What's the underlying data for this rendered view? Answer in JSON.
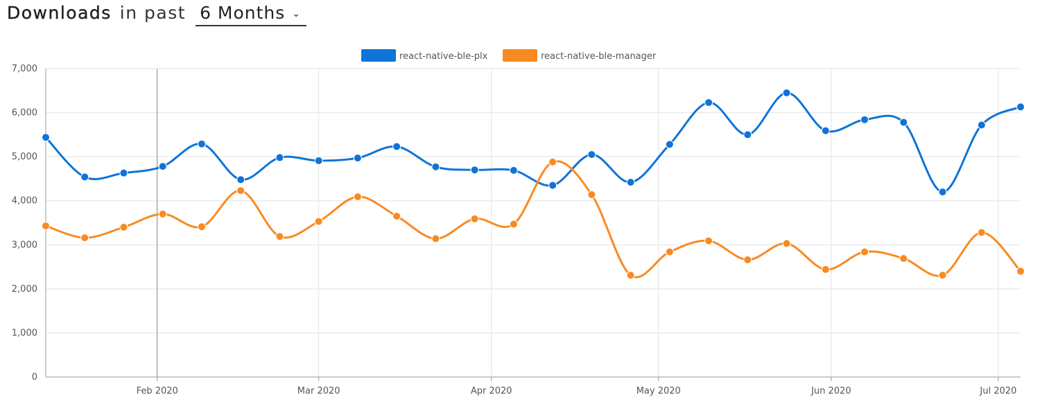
{
  "header": {
    "title": "Downloads",
    "connector": "in past",
    "period": "6 Months"
  },
  "colors": {
    "series_1": "#0f73d8",
    "series_2": "#f98a21",
    "grid": "#e3e3e3",
    "axis": "#999999"
  },
  "chart_data": {
    "type": "line",
    "title": "",
    "xlabel": "",
    "ylabel": "",
    "ylim": [
      0,
      7000
    ],
    "yticks": [
      0,
      1000,
      2000,
      3000,
      4000,
      5000,
      6000,
      7000
    ],
    "ytick_labels": [
      "0",
      "1,000",
      "2,000",
      "3,000",
      "4,000",
      "5,000",
      "6,000",
      "7,000"
    ],
    "xlim": [
      "2020-01-12",
      "2020-07-05"
    ],
    "xticks": [
      {
        "date": "2020-02-01",
        "label": "Feb 2020"
      },
      {
        "date": "2020-03-01",
        "label": "Mar 2020"
      },
      {
        "date": "2020-04-01",
        "label": "Apr 2020"
      },
      {
        "date": "2020-05-01",
        "label": "May 2020"
      },
      {
        "date": "2020-06-01",
        "label": "Jun 2020"
      },
      {
        "date": "2020-07-01",
        "label": "Jul 2020"
      }
    ],
    "legend_position": "top-center",
    "grid": true,
    "x": [
      "2020-01-12",
      "2020-01-19",
      "2020-01-26",
      "2020-02-02",
      "2020-02-09",
      "2020-02-16",
      "2020-02-23",
      "2020-03-01",
      "2020-03-08",
      "2020-03-15",
      "2020-03-22",
      "2020-03-29",
      "2020-04-05",
      "2020-04-12",
      "2020-04-19",
      "2020-04-26",
      "2020-05-03",
      "2020-05-10",
      "2020-05-17",
      "2020-05-24",
      "2020-05-31",
      "2020-06-07",
      "2020-06-14",
      "2020-06-21",
      "2020-06-28",
      "2020-07-05"
    ],
    "series": [
      {
        "name": "react-native-ble-plx",
        "values": [
          5440,
          4540,
          4630,
          4780,
          5290,
          4480,
          4980,
          4910,
          4970,
          5230,
          4770,
          4700,
          4690,
          4350,
          5050,
          4420,
          5280,
          6230,
          5500,
          6450,
          5590,
          5840,
          5780,
          4200,
          5720,
          6130
        ]
      },
      {
        "name": "react-native-ble-manager",
        "values": [
          3430,
          3160,
          3400,
          3700,
          3410,
          4230,
          3190,
          3530,
          4090,
          3650,
          3140,
          3590,
          3470,
          4880,
          4140,
          2310,
          2840,
          3090,
          2660,
          3030,
          2440,
          2840,
          2690,
          2310,
          3280,
          2400
        ]
      }
    ]
  }
}
